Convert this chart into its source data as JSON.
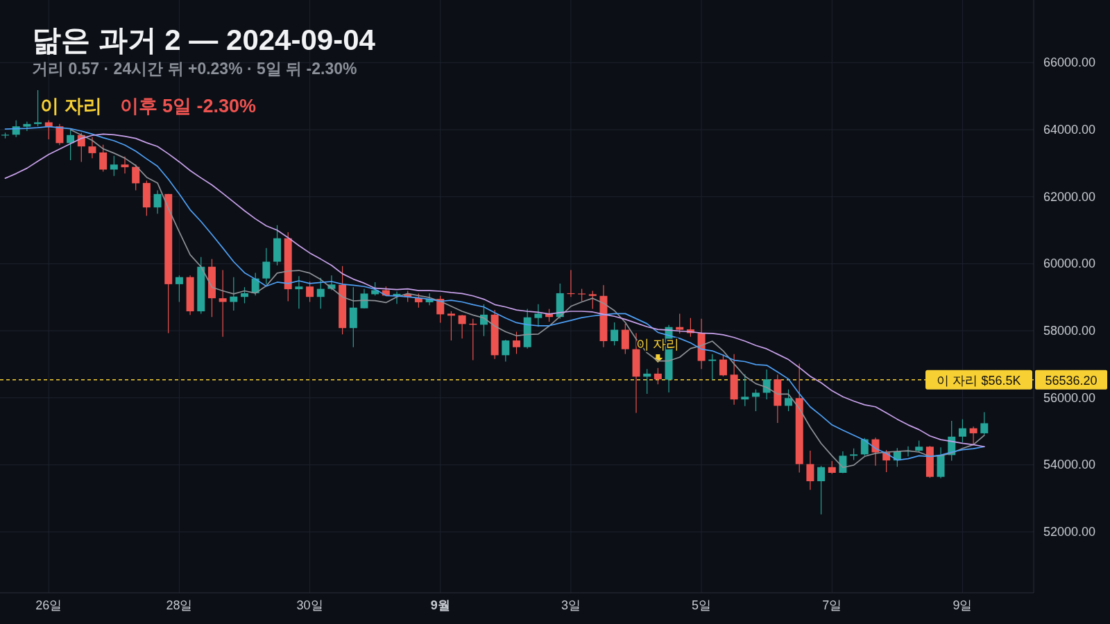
{
  "chart_data": {
    "type": "candlestick",
    "title": "닮은 과거 2 — 2024-09-04",
    "subtitle": "거리 0.57 · 24시간 뒤 +0.23% · 5일 뒤 -2.30%",
    "x": [
      "2024-08-25T08:00",
      "2024-08-25T12:00",
      "2024-08-25T16:00",
      "2024-08-25T20:00",
      "2024-08-26T00:00",
      "2024-08-26T04:00",
      "2024-08-26T08:00",
      "2024-08-26T12:00",
      "2024-08-26T16:00",
      "2024-08-26T20:00",
      "2024-08-27T00:00",
      "2024-08-27T04:00",
      "2024-08-27T08:00",
      "2024-08-27T12:00",
      "2024-08-27T16:00",
      "2024-08-27T20:00",
      "2024-08-28T00:00",
      "2024-08-28T04:00",
      "2024-08-28T08:00",
      "2024-08-28T12:00",
      "2024-08-28T16:00",
      "2024-08-28T20:00",
      "2024-08-29T00:00",
      "2024-08-29T04:00",
      "2024-08-29T08:00",
      "2024-08-29T12:00",
      "2024-08-29T16:00",
      "2024-08-29T20:00",
      "2024-08-30T00:00",
      "2024-08-30T04:00",
      "2024-08-30T08:00",
      "2024-08-30T12:00",
      "2024-08-30T16:00",
      "2024-08-30T20:00",
      "2024-08-31T00:00",
      "2024-08-31T04:00",
      "2024-08-31T08:00",
      "2024-08-31T12:00",
      "2024-08-31T16:00",
      "2024-08-31T20:00",
      "2024-09-01T00:00",
      "2024-09-01T04:00",
      "2024-09-01T08:00",
      "2024-09-01T12:00",
      "2024-09-01T16:00",
      "2024-09-01T20:00",
      "2024-09-02T00:00",
      "2024-09-02T04:00",
      "2024-09-02T08:00",
      "2024-09-02T12:00",
      "2024-09-02T16:00",
      "2024-09-02T20:00",
      "2024-09-03T00:00",
      "2024-09-03T04:00",
      "2024-09-03T08:00",
      "2024-09-03T12:00",
      "2024-09-03T16:00",
      "2024-09-03T20:00",
      "2024-09-04T00:00",
      "2024-09-04T04:00",
      "2024-09-04T08:00",
      "2024-09-04T12:00",
      "2024-09-04T16:00",
      "2024-09-04T20:00",
      "2024-09-05T00:00",
      "2024-09-05T04:00",
      "2024-09-05T08:00",
      "2024-09-05T12:00",
      "2024-09-05T16:00",
      "2024-09-05T20:00",
      "2024-09-06T00:00",
      "2024-09-06T04:00",
      "2024-09-06T08:00",
      "2024-09-06T12:00",
      "2024-09-06T16:00",
      "2024-09-06T20:00",
      "2024-09-07T00:00",
      "2024-09-07T04:00",
      "2024-09-07T08:00",
      "2024-09-07T12:00",
      "2024-09-07T16:00",
      "2024-09-07T20:00",
      "2024-09-08T00:00",
      "2024-09-08T04:00",
      "2024-09-08T08:00",
      "2024-09-08T12:00",
      "2024-09-08T16:00",
      "2024-09-08T20:00",
      "2024-09-09T00:00",
      "2024-09-09T04:00",
      "2024-09-09T08:00"
    ],
    "ohlc": [
      [
        63830,
        63910,
        63740,
        63850
      ],
      [
        63850,
        64280,
        63780,
        64100
      ],
      [
        64090,
        64240,
        63960,
        64170
      ],
      [
        64170,
        65180,
        64100,
        64220
      ],
      [
        64220,
        64280,
        63710,
        64090
      ],
      [
        64100,
        64170,
        63540,
        63600
      ],
      [
        63600,
        64000,
        63090,
        63840
      ],
      [
        63840,
        63910,
        63040,
        63500
      ],
      [
        63500,
        63780,
        63150,
        63300
      ],
      [
        63320,
        63550,
        62750,
        62810
      ],
      [
        62810,
        63220,
        62620,
        62960
      ],
      [
        62960,
        63200,
        62690,
        62880
      ],
      [
        62890,
        62960,
        62190,
        62400
      ],
      [
        62410,
        62480,
        61430,
        61680
      ],
      [
        61680,
        62190,
        61490,
        62080
      ],
      [
        62080,
        62080,
        57930,
        59390
      ],
      [
        59390,
        59650,
        58860,
        59600
      ],
      [
        59600,
        59650,
        58470,
        58580
      ],
      [
        58580,
        60200,
        58510,
        59910
      ],
      [
        59910,
        60140,
        58410,
        58970
      ],
      [
        58970,
        59810,
        57820,
        58860
      ],
      [
        58860,
        59600,
        58600,
        59020
      ],
      [
        59010,
        59300,
        58820,
        59120
      ],
      [
        59120,
        59730,
        59050,
        59560
      ],
      [
        59560,
        60470,
        59390,
        60060
      ],
      [
        60060,
        61150,
        59950,
        60760
      ],
      [
        60760,
        60940,
        58880,
        59240
      ],
      [
        59240,
        59630,
        58660,
        59320
      ],
      [
        59320,
        59470,
        58860,
        59010
      ],
      [
        59010,
        59580,
        58660,
        59250
      ],
      [
        59250,
        59650,
        59210,
        59380
      ],
      [
        59370,
        59930,
        57890,
        58080
      ],
      [
        58080,
        59300,
        57510,
        58690
      ],
      [
        58670,
        59250,
        58670,
        59110
      ],
      [
        59090,
        59450,
        59050,
        59210
      ],
      [
        59210,
        59320,
        59040,
        59050
      ],
      [
        59050,
        59170,
        58800,
        59100
      ],
      [
        59090,
        59190,
        58860,
        59010
      ],
      [
        58980,
        59110,
        58690,
        58850
      ],
      [
        58850,
        59120,
        58760,
        58950
      ],
      [
        58950,
        59040,
        58240,
        58490
      ],
      [
        58510,
        58580,
        57710,
        58450
      ],
      [
        58460,
        58470,
        57770,
        58200
      ],
      [
        58210,
        58360,
        57120,
        58180
      ],
      [
        58180,
        58790,
        57840,
        58480
      ],
      [
        58480,
        58620,
        57160,
        57270
      ],
      [
        57270,
        57730,
        57080,
        57710
      ],
      [
        57710,
        57970,
        57310,
        57510
      ],
      [
        57510,
        58650,
        57470,
        58400
      ],
      [
        58380,
        58790,
        58120,
        58510
      ],
      [
        58510,
        58650,
        58270,
        58410
      ],
      [
        58410,
        59410,
        58360,
        59120
      ],
      [
        59120,
        59810,
        59010,
        59110
      ],
      [
        59110,
        59250,
        58880,
        59090
      ],
      [
        59090,
        59190,
        58650,
        59040
      ],
      [
        59040,
        59360,
        57510,
        57690
      ],
      [
        57690,
        58250,
        57560,
        58030
      ],
      [
        58030,
        58210,
        57310,
        57450
      ],
      [
        57450,
        57930,
        55550,
        56630
      ],
      [
        56630,
        56860,
        56120,
        56720
      ],
      [
        56720,
        56890,
        56400,
        56550
      ],
      [
        56540,
        58170,
        56160,
        58110
      ],
      [
        58110,
        58510,
        57920,
        58030
      ],
      [
        58040,
        58380,
        57820,
        57930
      ],
      [
        57930,
        58360,
        56860,
        57100
      ],
      [
        57100,
        57300,
        56530,
        57140
      ],
      [
        57140,
        57300,
        56640,
        56670
      ],
      [
        56690,
        57300,
        55790,
        55950
      ],
      [
        55950,
        56700,
        55750,
        56030
      ],
      [
        56030,
        56250,
        55600,
        56150
      ],
      [
        56150,
        56840,
        55950,
        56550
      ],
      [
        56550,
        56690,
        55250,
        55760
      ],
      [
        55760,
        56250,
        55600,
        55990
      ],
      [
        55990,
        57020,
        53770,
        54020
      ],
      [
        54020,
        54420,
        53250,
        53510
      ],
      [
        53510,
        53970,
        52520,
        53930
      ],
      [
        53930,
        54110,
        53730,
        53760
      ],
      [
        53760,
        54400,
        53750,
        54270
      ],
      [
        54270,
        54490,
        54140,
        54310
      ],
      [
        54310,
        54800,
        54270,
        54760
      ],
      [
        54760,
        54810,
        53970,
        54370
      ],
      [
        54370,
        54440,
        53780,
        54130
      ],
      [
        54130,
        54500,
        53940,
        54400
      ],
      [
        54400,
        54550,
        54250,
        54420
      ],
      [
        54420,
        54720,
        54370,
        54540
      ],
      [
        54540,
        54560,
        53610,
        53640
      ],
      [
        53640,
        54520,
        53600,
        54290
      ],
      [
        54290,
        55310,
        54120,
        54840
      ],
      [
        54840,
        55360,
        54670,
        55090
      ],
      [
        55090,
        55140,
        54600,
        54940
      ],
      [
        54940,
        55570,
        54900,
        55240
      ]
    ],
    "series": [
      {
        "type": "line",
        "color": "#8e9196",
        "values": [
          null,
          null,
          null,
          null,
          null,
          null,
          64000,
          63840,
          63680,
          63430,
          63300,
          63150,
          62930,
          62580,
          62410,
          61650,
          60950,
          60270,
          59910,
          59300,
          59190,
          59100,
          59190,
          59120,
          59340,
          59720,
          59780,
          59800,
          59720,
          59530,
          59270,
          59010,
          58890,
          58910,
          58900,
          58840,
          59010,
          59110,
          59050,
          58990,
          58880,
          58730,
          58580,
          58470,
          58380,
          58140,
          57970,
          57850,
          57890,
          57900,
          58140,
          58430,
          58730,
          58860,
          58970,
          58820,
          58600,
          58250,
          57750,
          57340,
          57100,
          57100,
          57210,
          57470,
          57560,
          57690,
          57400,
          57010,
          56640,
          56420,
          56310,
          56110,
          56110,
          55680,
          55120,
          54640,
          54270,
          53920,
          53990,
          54250,
          54340,
          54380,
          54400,
          54420,
          54380,
          54250,
          54270,
          54350,
          54490,
          54600,
          54880
        ]
      },
      {
        "type": "line",
        "color": "#4ea0f5",
        "values": [
          64020,
          64030,
          64040,
          64060,
          64090,
          64060,
          64030,
          63960,
          63870,
          63760,
          63670,
          63540,
          63360,
          63130,
          62910,
          62520,
          62080,
          61610,
          61260,
          60870,
          60470,
          60060,
          59730,
          59540,
          59330,
          59450,
          59410,
          59490,
          59410,
          59440,
          59470,
          59390,
          59360,
          59320,
          59240,
          59050,
          59040,
          59010,
          58980,
          58940,
          58880,
          58910,
          58860,
          58780,
          58710,
          58540,
          58380,
          58240,
          58180,
          58150,
          58150,
          58230,
          58310,
          58390,
          58440,
          58480,
          58510,
          58510,
          58360,
          58210,
          57950,
          57860,
          57770,
          57640,
          57450,
          57400,
          57270,
          57120,
          57080,
          56990,
          56970,
          56770,
          56560,
          56120,
          55730,
          55470,
          55190,
          55030,
          54880,
          54730,
          54490,
          54340,
          54140,
          54180,
          54270,
          54250,
          54290,
          54380,
          54450,
          54480,
          54540
        ]
      },
      {
        "type": "line",
        "color": "#c9a2ec",
        "values": [
          62550,
          62690,
          62850,
          63060,
          63260,
          63420,
          63580,
          63740,
          63830,
          63870,
          63850,
          63800,
          63740,
          63610,
          63500,
          63280,
          63040,
          62780,
          62560,
          62350,
          62100,
          61840,
          61580,
          61340,
          61130,
          61000,
          60780,
          60540,
          60320,
          60140,
          59950,
          59700,
          59540,
          59420,
          59270,
          59250,
          59230,
          59250,
          59200,
          59200,
          59180,
          59140,
          59110,
          59040,
          58940,
          58780,
          58710,
          58620,
          58580,
          58550,
          58500,
          58540,
          58580,
          58580,
          58560,
          58490,
          58430,
          58340,
          58230,
          58120,
          58040,
          58020,
          57990,
          57970,
          57930,
          57920,
          57880,
          57800,
          57690,
          57560,
          57460,
          57300,
          57140,
          56900,
          56640,
          56450,
          56210,
          56030,
          55900,
          55790,
          55730,
          55550,
          55360,
          55190,
          55050,
          54860,
          54750,
          54700,
          54640,
          54600,
          54540
        ]
      }
    ],
    "xlim": [
      "2024-08-25T06:05",
      "2024-09-10T02:10"
    ],
    "xticks": [
      {
        "value": "2024-08-26",
        "label": "26일"
      },
      {
        "value": "2024-08-28",
        "label": "28일"
      },
      {
        "value": "2024-08-30",
        "label": "30일"
      },
      {
        "value": "2024-09-01",
        "label": "**9월**"
      },
      {
        "value": "2024-09-03",
        "label": "3일"
      },
      {
        "value": "2024-09-05",
        "label": "5일"
      },
      {
        "value": "2024-09-07",
        "label": "7일"
      },
      {
        "value": "2024-09-09",
        "label": "9일"
      }
    ],
    "ylim": [
      50180,
      67870
    ],
    "yticks": [
      {
        "value": 52000,
        "label": "52000.00"
      },
      {
        "value": 54000,
        "label": "54000.00"
      },
      {
        "value": 56000,
        "label": "56000.00"
      },
      {
        "value": 58000,
        "label": "58000.00"
      },
      {
        "value": 60000,
        "label": "60000.00"
      },
      {
        "value": 62000,
        "label": "62000.00"
      },
      {
        "value": 64000,
        "label": "64000.00"
      },
      {
        "value": 66000,
        "label": "66000.00"
      }
    ],
    "grid": true,
    "marker": "none",
    "ref_lines": [
      {
        "axis": "y",
        "value": 56536.2,
        "label": "이 자리 $56.5K",
        "color": "#f7d034",
        "line_style": "dashed"
      }
    ],
    "annotations": [
      "이 자리",
      "이후 5일 -2.30%",
      "56536.20",
      {
        "text": "이 자리",
        "x": "2024-09-04T08:00",
        "y": 57050
      }
    ]
  }
}
